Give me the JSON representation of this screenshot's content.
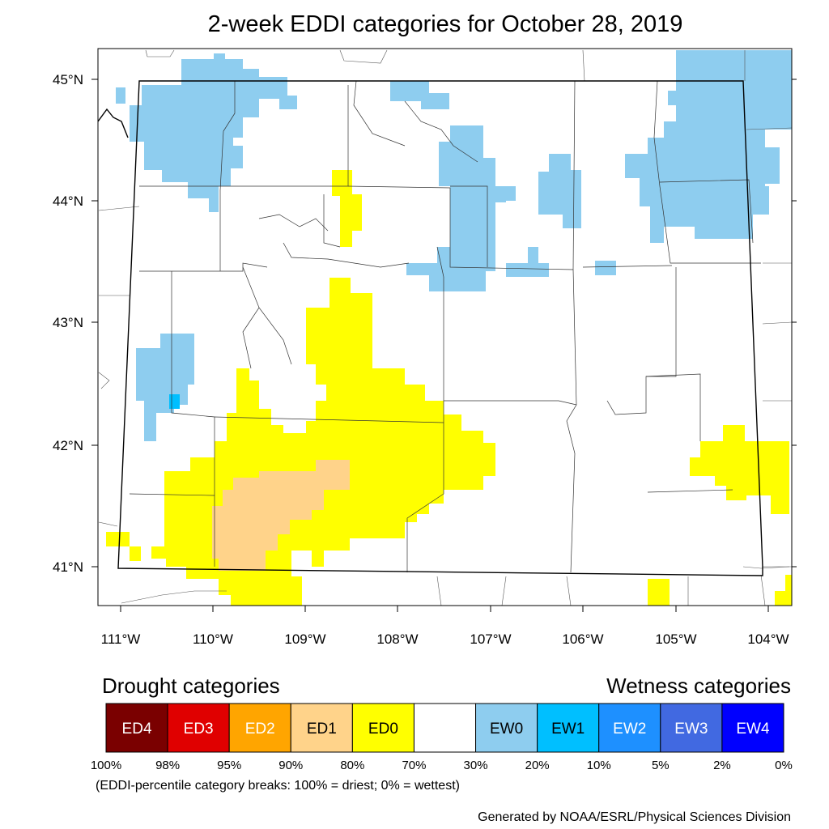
{
  "title": "2-week EDDI categories for October 28, 2019",
  "map": {
    "lat_labels": [
      "45°N",
      "44°N",
      "43°N",
      "42°N",
      "41°N"
    ],
    "lon_labels": [
      "111°W",
      "110°W",
      "109°W",
      "108°W",
      "107°W",
      "106°W",
      "105°W",
      "104°W"
    ]
  },
  "legend": {
    "drought_heading": "Drought categories",
    "wetness_heading": "Wetness categories",
    "categories": [
      {
        "label": "ED4",
        "color": "#7a0000",
        "text_color": "#ffffff"
      },
      {
        "label": "ED3",
        "color": "#e00000",
        "text_color": "#ffffff"
      },
      {
        "label": "ED2",
        "color": "#ffa500",
        "text_color": "#ffffff"
      },
      {
        "label": "ED1",
        "color": "#ffd38a",
        "text_color": "#000000"
      },
      {
        "label": "ED0",
        "color": "#ffff00",
        "text_color": "#000000"
      },
      {
        "label": "",
        "color": "#ffffff",
        "text_color": "#000000"
      },
      {
        "label": "EW0",
        "color": "#8ecdef",
        "text_color": "#000000"
      },
      {
        "label": "EW1",
        "color": "#00bfff",
        "text_color": "#000000"
      },
      {
        "label": "EW2",
        "color": "#1e90ff",
        "text_color": "#ffffff"
      },
      {
        "label": "EW3",
        "color": "#4169e1",
        "text_color": "#ffffff"
      },
      {
        "label": "EW4",
        "color": "#0000ff",
        "text_color": "#ffffff"
      }
    ],
    "breaks": [
      "100%",
      "98%",
      "95%",
      "90%",
      "80%",
      "70%",
      "30%",
      "20%",
      "10%",
      "5%",
      "2%",
      "0%"
    ],
    "footnote": "(EDDI-percentile category breaks: 100% = driest; 0% = wettest)"
  },
  "credit": "Generated by NOAA/ESRL/Physical Sciences Division"
}
